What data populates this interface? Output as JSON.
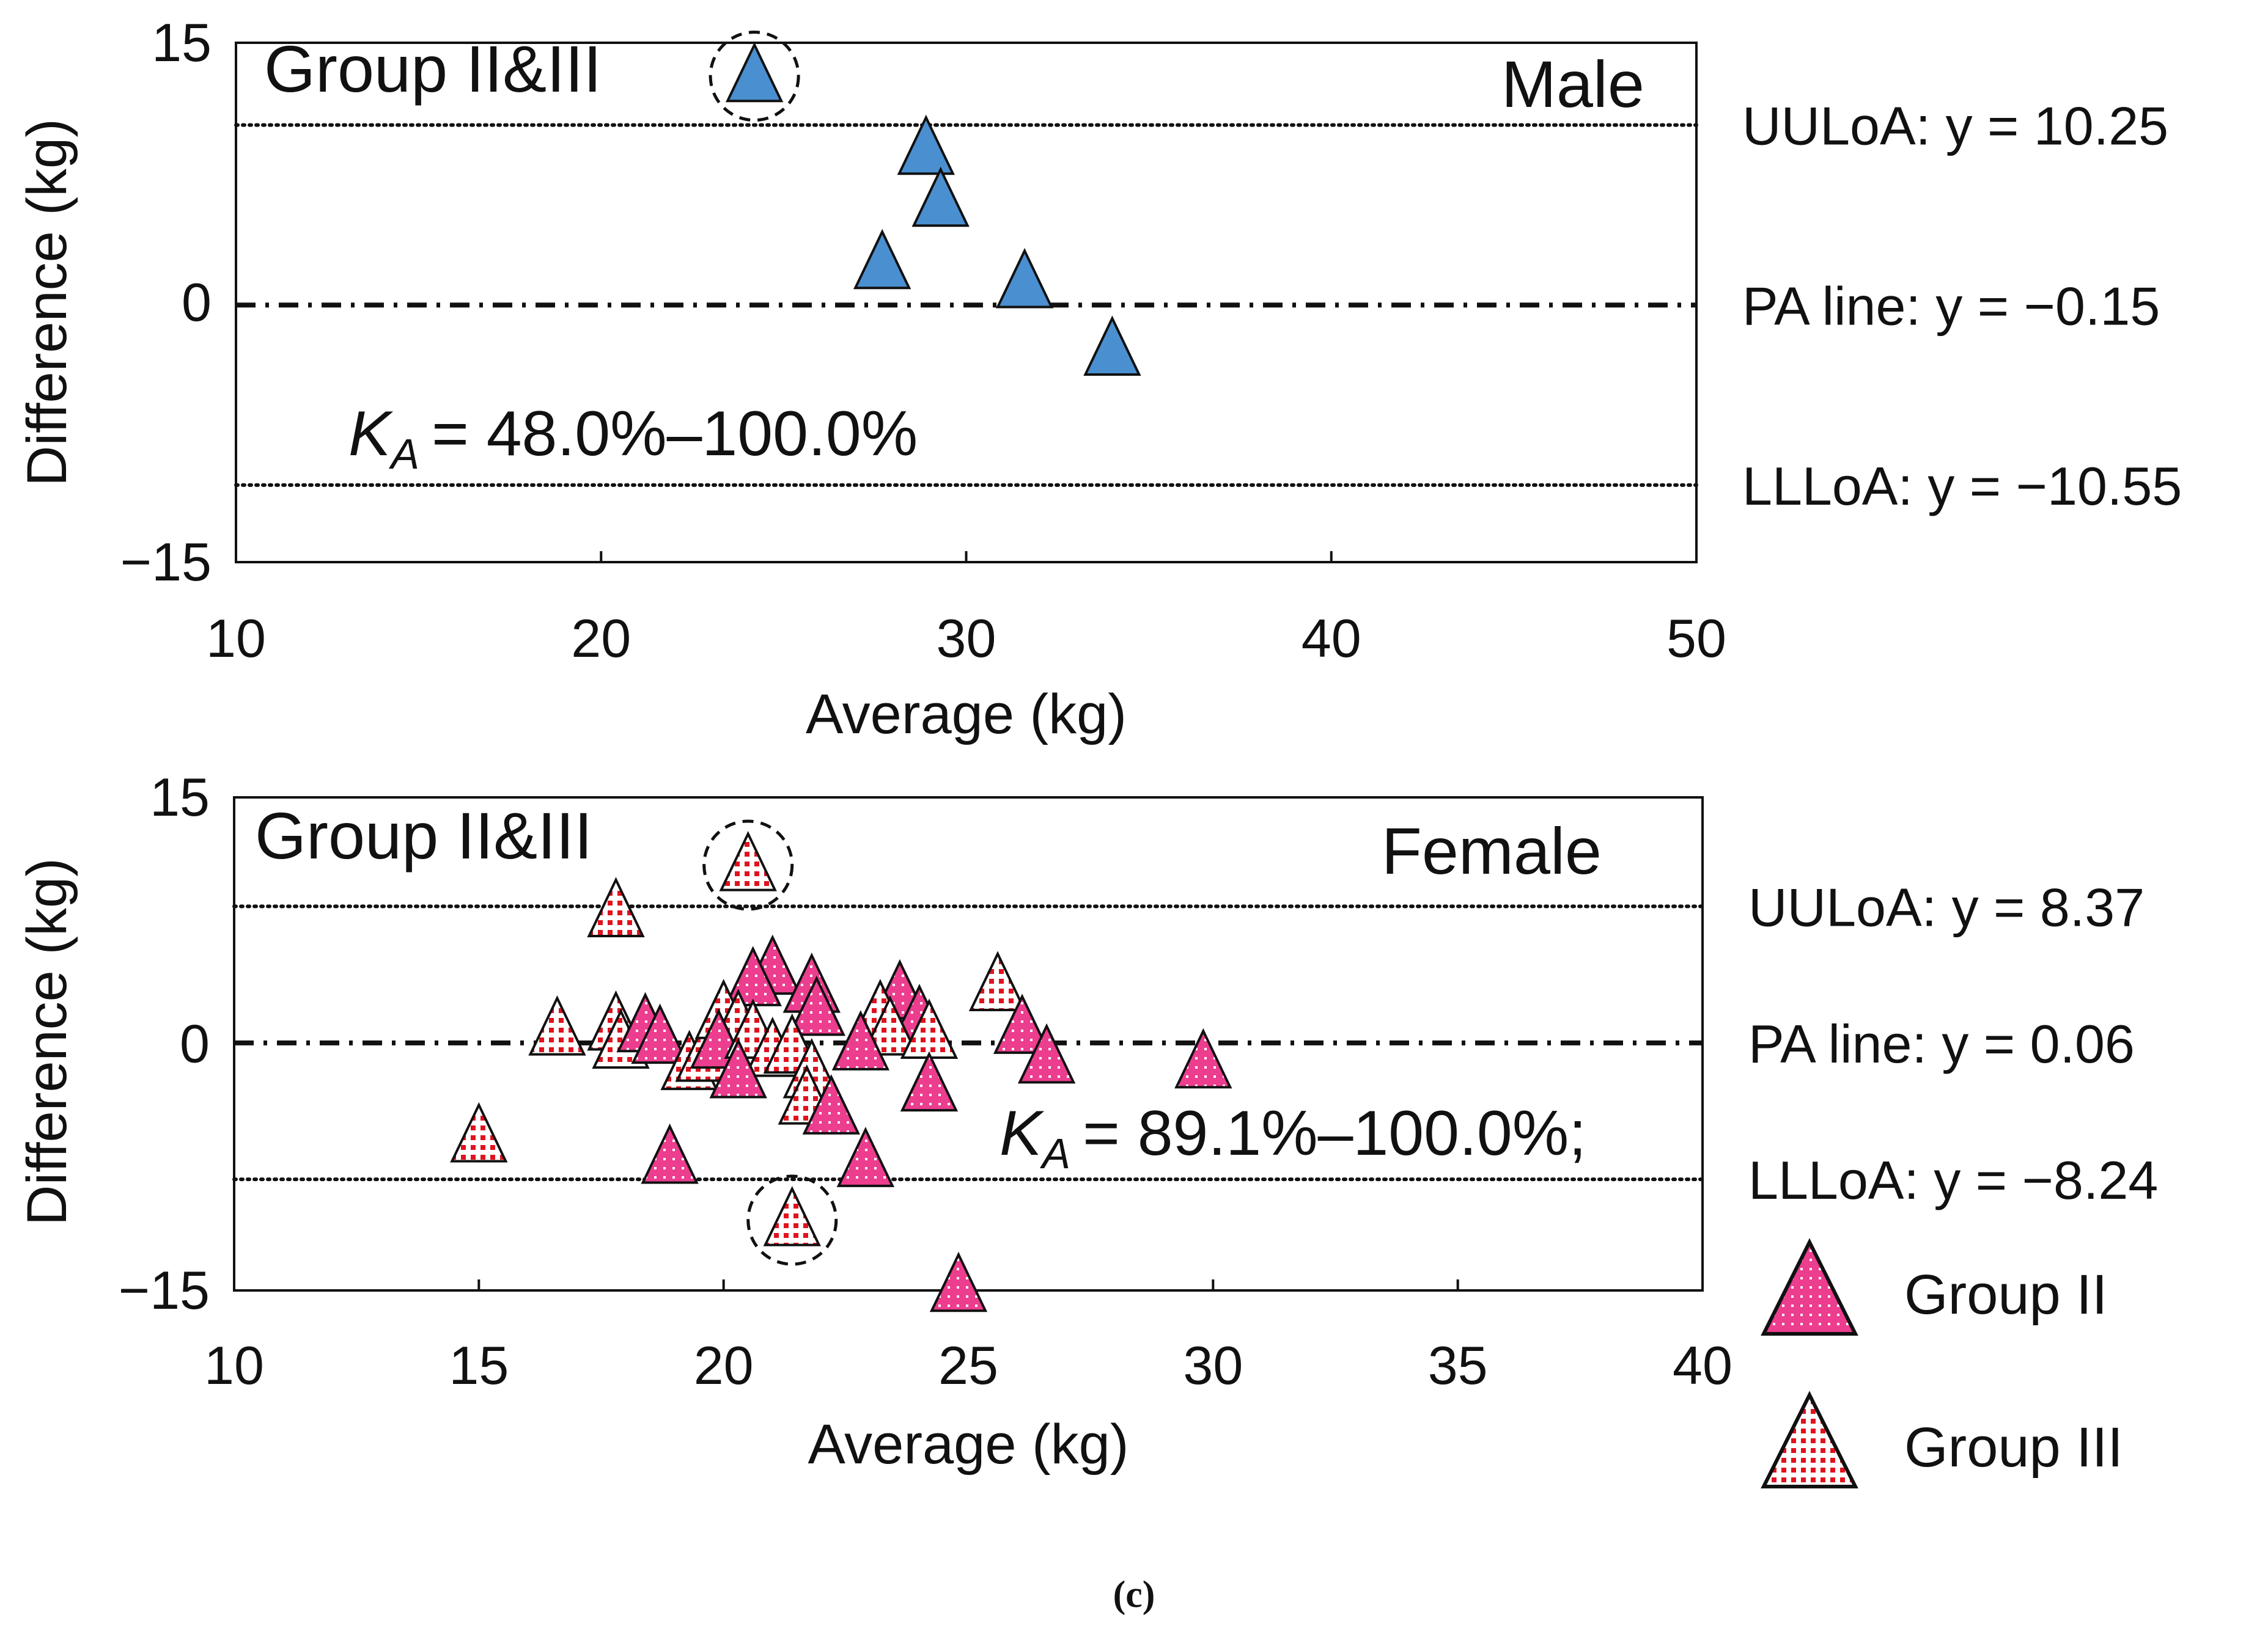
{
  "caption": "(c)",
  "chart_data": [
    {
      "type": "scatter",
      "panel": "Male",
      "annotation_group": "Group II&III",
      "ka_label": "= 48.0%–100.0%",
      "xlabel": "Average (kg)",
      "ylabel": "Difference (kg)",
      "xlim": [
        10,
        50
      ],
      "ylim": [
        -15,
        15
      ],
      "xticks": [
        "10",
        "20",
        "30",
        "40",
        "50"
      ],
      "yticks": [
        "15",
        "0",
        "−15"
      ],
      "lines": {
        "uuloa": {
          "value": 10.25,
          "label": "UULoA: y = 10.25"
        },
        "pa": {
          "value": -0.15,
          "label": "PA line: y = −0.15"
        },
        "llloa": {
          "value": -10.55,
          "label": "LLLoA: y = −10.55"
        }
      },
      "marker_color": "#4a8fd0",
      "points": [
        {
          "x": 24.2,
          "y": 13.0,
          "group": "II&III",
          "circled": true
        },
        {
          "x": 28.9,
          "y": 8.8,
          "group": "II&III"
        },
        {
          "x": 29.3,
          "y": 5.8,
          "group": "II&III"
        },
        {
          "x": 27.7,
          "y": 2.2,
          "group": "II&III"
        },
        {
          "x": 31.6,
          "y": 1.1,
          "group": "II&III"
        },
        {
          "x": 34.0,
          "y": -2.8,
          "group": "II&III"
        }
      ]
    },
    {
      "type": "scatter",
      "panel": "Female",
      "annotation_group": "Group II&III",
      "ka_label": "= 89.1%–100.0%;",
      "xlabel": "Average (kg)",
      "ylabel": "Difference (kg)",
      "xlim": [
        10,
        40
      ],
      "ylim": [
        -15,
        15
      ],
      "xticks": [
        "10",
        "15",
        "20",
        "25",
        "30",
        "35",
        "40"
      ],
      "yticks": [
        "15",
        "0",
        "−15"
      ],
      "lines": {
        "uuloa": {
          "value": 8.37,
          "label": "UULoA: y = 8.37"
        },
        "pa": {
          "value": 0.06,
          "label": "PA line: y = 0.06"
        },
        "llloa": {
          "value": -8.24,
          "label": "LLLoA: y = −8.24"
        }
      },
      "legend": [
        {
          "label": "Group II",
          "group": "II"
        },
        {
          "label": "Group III",
          "group": "III"
        }
      ],
      "points": [
        {
          "x": 20.5,
          "y": 10.8,
          "group": "III",
          "circled": true
        },
        {
          "x": 17.8,
          "y": 8.0,
          "group": "III"
        },
        {
          "x": 21.0,
          "y": 4.5,
          "group": "II"
        },
        {
          "x": 20.6,
          "y": 3.8,
          "group": "II"
        },
        {
          "x": 21.8,
          "y": 3.4,
          "group": "II"
        },
        {
          "x": 21.9,
          "y": 2.0,
          "group": "II"
        },
        {
          "x": 25.6,
          "y": 3.5,
          "group": "III"
        },
        {
          "x": 23.6,
          "y": 3.0,
          "group": "II"
        },
        {
          "x": 23.2,
          "y": 1.8,
          "group": "III"
        },
        {
          "x": 24.0,
          "y": 1.5,
          "group": "II"
        },
        {
          "x": 23.4,
          "y": 0.8,
          "group": "III"
        },
        {
          "x": 24.2,
          "y": 0.6,
          "group": "III"
        },
        {
          "x": 26.1,
          "y": 0.9,
          "group": "II"
        },
        {
          "x": 16.6,
          "y": 0.8,
          "group": "III"
        },
        {
          "x": 17.8,
          "y": 1.1,
          "group": "III"
        },
        {
          "x": 17.9,
          "y": 0.0,
          "group": "III"
        },
        {
          "x": 18.4,
          "y": 1.0,
          "group": "II"
        },
        {
          "x": 18.7,
          "y": 0.3,
          "group": "II"
        },
        {
          "x": 19.3,
          "y": -1.3,
          "group": "III"
        },
        {
          "x": 19.6,
          "y": -0.8,
          "group": "III"
        },
        {
          "x": 20.0,
          "y": 1.8,
          "group": "III"
        },
        {
          "x": 20.3,
          "y": 1.2,
          "group": "III"
        },
        {
          "x": 19.9,
          "y": 0.0,
          "group": "II"
        },
        {
          "x": 20.6,
          "y": 0.6,
          "group": "III"
        },
        {
          "x": 21.0,
          "y": -0.5,
          "group": "III"
        },
        {
          "x": 21.4,
          "y": -0.3,
          "group": "III"
        },
        {
          "x": 20.3,
          "y": -1.8,
          "group": "II"
        },
        {
          "x": 21.8,
          "y": -1.8,
          "group": "III"
        },
        {
          "x": 21.7,
          "y": -3.4,
          "group": "III"
        },
        {
          "x": 22.2,
          "y": -4.0,
          "group": "II"
        },
        {
          "x": 22.8,
          "y": -0.1,
          "group": "II"
        },
        {
          "x": 24.2,
          "y": -2.6,
          "group": "II"
        },
        {
          "x": 26.6,
          "y": -0.9,
          "group": "II"
        },
        {
          "x": 29.8,
          "y": -1.2,
          "group": "II"
        },
        {
          "x": 15.0,
          "y": -5.7,
          "group": "III"
        },
        {
          "x": 18.9,
          "y": -7.0,
          "group": "II"
        },
        {
          "x": 22.9,
          "y": -7.2,
          "group": "II"
        },
        {
          "x": 21.4,
          "y": -10.8,
          "group": "III",
          "circled": true
        },
        {
          "x": 24.8,
          "y": -14.8,
          "group": "II"
        }
      ]
    }
  ]
}
